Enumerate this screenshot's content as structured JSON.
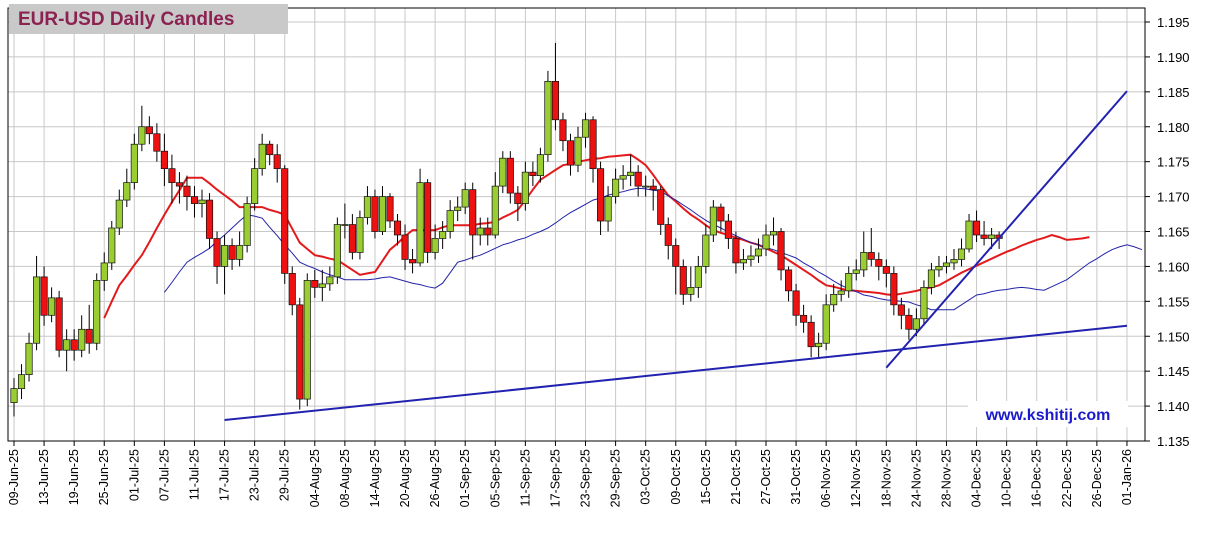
{
  "chart_data": {
    "type": "candlestick",
    "title": "EUR-USD Daily  Candles",
    "annotation": "www.kshitij.com",
    "categories": [
      "09-Jun-25",
      null,
      null,
      null,
      "13-Jun-25",
      null,
      null,
      null,
      "19-Jun-25",
      null,
      null,
      null,
      "25-Jun-25",
      null,
      null,
      null,
      "01-Jul-25",
      null,
      null,
      null,
      "07-Jul-25",
      null,
      null,
      null,
      "11-Jul-25",
      null,
      null,
      null,
      "17-Jul-25",
      null,
      null,
      null,
      "23-Jul-25",
      null,
      null,
      null,
      "29-Jul-25",
      null,
      null,
      null,
      "04-Aug-25",
      null,
      null,
      null,
      "08-Aug-25",
      null,
      null,
      null,
      "14-Aug-25",
      null,
      null,
      null,
      "20-Aug-25",
      null,
      null,
      null,
      "26-Aug-25",
      null,
      null,
      null,
      "01-Sep-25",
      null,
      null,
      null,
      "05-Sep-25",
      null,
      null,
      null,
      "11-Sep-25",
      null,
      null,
      null,
      "17-Sep-25",
      null,
      null,
      null,
      "23-Sep-25",
      null,
      null,
      null,
      "29-Sep-25",
      null,
      null,
      null,
      "03-Oct-25",
      null,
      null,
      null,
      "09-Oct-25",
      null,
      null,
      null,
      "15-Oct-25",
      null,
      null,
      null,
      "21-Oct-25",
      null,
      null,
      null,
      "27-Oct-25",
      null,
      null,
      null,
      "31-Oct-25",
      null,
      null,
      null,
      "06-Nov-25",
      null,
      null,
      null,
      "12-Nov-25",
      null,
      null,
      null,
      "18-Nov-25",
      null,
      null,
      null,
      "24-Nov-25",
      null,
      null,
      null,
      "28-Nov-25",
      null,
      null,
      null,
      "04-Dec-25",
      null,
      null,
      null,
      "10-Dec-25",
      null,
      null,
      null,
      "16-Dec-25",
      null,
      null,
      null,
      "22-Dec-25",
      null,
      null,
      null,
      "26-Dec-25",
      null,
      null,
      null,
      "01-Jan-26",
      null,
      null
    ],
    "open": [
      1.1405,
      1.1425,
      1.1445,
      1.149,
      1.1585,
      1.153,
      1.1555,
      1.148,
      1.1495,
      1.148,
      1.151,
      1.149,
      1.158,
      1.1605,
      1.1655,
      1.1695,
      1.172,
      1.1775,
      1.18,
      1.179,
      1.1765,
      1.174,
      1.172,
      1.1715,
      1.17,
      1.169,
      1.1695,
      1.164,
      1.16,
      1.163,
      1.161,
      1.163,
      1.169,
      1.174,
      1.1775,
      1.176,
      1.174,
      1.159,
      1.1545,
      1.141,
      1.158,
      1.157,
      1.1575,
      1.1585,
      1.166,
      1.166,
      1.162,
      1.167,
      1.17,
      1.165,
      1.17,
      1.1665,
      1.1645,
      1.161,
      1.1605,
      1.172,
      1.162,
      1.164,
      1.165,
      1.168,
      1.1685,
      1.171,
      1.1645,
      1.1655,
      1.1645,
      1.1715,
      1.1755,
      1.1705,
      1.169,
      1.1735,
      1.173,
      1.176,
      1.1865,
      1.181,
      1.178,
      1.1745,
      1.1785,
      1.181,
      1.174,
      1.1665,
      1.17,
      1.1725,
      1.173,
      1.1735,
      1.1715,
      1.1715,
      1.171,
      1.166,
      1.163,
      1.16,
      1.156,
      1.157,
      1.16,
      1.1645,
      1.1685,
      1.1665,
      1.164,
      1.1605,
      1.161,
      1.1615,
      1.1625,
      1.1645,
      1.165,
      1.1595,
      1.1565,
      1.153,
      1.152,
      1.1485,
      1.149,
      1.1545,
      1.156,
      1.1565,
      1.159,
      1.1595,
      1.162,
      1.161,
      1.16,
      1.159,
      1.1545,
      1.153,
      1.151,
      1.1525,
      1.157,
      1.1595,
      1.16,
      1.1605,
      1.161,
      1.1625,
      1.1665,
      1.1645,
      1.164,
      1.1645,
      null,
      null,
      null,
      null,
      null,
      null,
      null,
      null,
      null,
      null,
      null,
      null,
      null,
      null,
      null,
      null,
      null,
      null,
      null
    ],
    "high": [
      1.144,
      1.146,
      1.1505,
      1.1615,
      1.16,
      1.157,
      1.1565,
      1.151,
      1.151,
      1.153,
      1.1545,
      1.159,
      1.162,
      1.1665,
      1.171,
      1.174,
      1.179,
      1.183,
      1.1815,
      1.1805,
      1.179,
      1.176,
      1.1735,
      1.173,
      1.1715,
      1.171,
      1.1705,
      1.165,
      1.1645,
      1.164,
      1.165,
      1.17,
      1.1755,
      1.179,
      1.178,
      1.1775,
      1.1745,
      1.16,
      1.1555,
      1.159,
      1.1595,
      1.1595,
      1.16,
      1.167,
      1.169,
      1.1675,
      1.168,
      1.1715,
      1.171,
      1.1715,
      1.1705,
      1.1675,
      1.166,
      1.1625,
      1.174,
      1.1725,
      1.166,
      1.1665,
      1.1695,
      1.17,
      1.172,
      1.172,
      1.167,
      1.167,
      1.1735,
      1.1765,
      1.1765,
      1.1715,
      1.175,
      1.175,
      1.177,
      1.188,
      1.192,
      1.182,
      1.179,
      1.18,
      1.182,
      1.1815,
      1.175,
      1.1715,
      1.174,
      1.1745,
      1.176,
      1.1745,
      1.173,
      1.1725,
      1.1715,
      1.167,
      1.164,
      1.161,
      1.16,
      1.1615,
      1.166,
      1.1695,
      1.169,
      1.1675,
      1.165,
      1.1625,
      1.163,
      1.164,
      1.166,
      1.167,
      1.1655,
      1.16,
      1.1575,
      1.1545,
      1.153,
      1.1505,
      1.156,
      1.1575,
      1.158,
      1.16,
      1.161,
      1.165,
      1.1655,
      1.162,
      1.161,
      1.16,
      1.1555,
      1.154,
      1.154,
      1.158,
      1.1605,
      1.1615,
      1.1615,
      1.1625,
      1.164,
      1.1675,
      1.168,
      1.1665,
      1.1655,
      1.165,
      null,
      null,
      null,
      null,
      null,
      null,
      null,
      null,
      null,
      null,
      null,
      null,
      null,
      null,
      null,
      null,
      null,
      null,
      null
    ],
    "low": [
      1.1385,
      1.141,
      1.1435,
      1.148,
      1.1515,
      1.152,
      1.147,
      1.145,
      1.1465,
      1.147,
      1.1475,
      1.148,
      1.1565,
      1.1595,
      1.1645,
      1.1685,
      1.171,
      1.1765,
      1.1775,
      1.175,
      1.1715,
      1.169,
      1.169,
      1.168,
      1.167,
      1.167,
      1.1625,
      1.1575,
      1.156,
      1.1595,
      1.16,
      1.162,
      1.168,
      1.173,
      1.1745,
      1.172,
      1.1575,
      1.153,
      1.1395,
      1.14,
      1.1555,
      1.155,
      1.1565,
      1.1575,
      1.164,
      1.161,
      1.161,
      1.166,
      1.164,
      1.1645,
      1.1655,
      1.163,
      1.1595,
      1.159,
      1.16,
      1.1605,
      1.161,
      1.1625,
      1.164,
      1.1665,
      1.1675,
      1.161,
      1.163,
      1.163,
      1.164,
      1.1705,
      1.169,
      1.1665,
      1.168,
      1.1715,
      1.172,
      1.175,
      1.1795,
      1.1765,
      1.173,
      1.1735,
      1.177,
      1.172,
      1.1645,
      1.165,
      1.169,
      1.171,
      1.1715,
      1.17,
      1.17,
      1.168,
      1.1645,
      1.161,
      1.156,
      1.1545,
      1.155,
      1.1555,
      1.159,
      1.1635,
      1.165,
      1.1625,
      1.159,
      1.1595,
      1.16,
      1.1605,
      1.1615,
      1.163,
      1.158,
      1.155,
      1.1515,
      1.1505,
      1.147,
      1.147,
      1.148,
      1.1535,
      1.155,
      1.1555,
      1.158,
      1.1585,
      1.16,
      1.158,
      1.157,
      1.153,
      1.151,
      1.1495,
      1.15,
      1.1515,
      1.156,
      1.1585,
      1.159,
      1.1595,
      1.16,
      1.162,
      1.1635,
      1.163,
      1.1625,
      1.1625,
      null,
      null,
      null,
      null,
      null,
      null,
      null,
      null,
      null,
      null,
      null,
      null,
      null,
      null,
      null,
      null,
      null,
      null,
      null
    ],
    "close": [
      1.1425,
      1.1445,
      1.149,
      1.1585,
      1.153,
      1.1555,
      1.148,
      1.1495,
      1.148,
      1.151,
      1.149,
      1.158,
      1.1605,
      1.1655,
      1.1695,
      1.172,
      1.1775,
      1.18,
      1.179,
      1.1765,
      1.174,
      1.172,
      1.1715,
      1.17,
      1.169,
      1.1695,
      1.164,
      1.16,
      1.163,
      1.161,
      1.163,
      1.169,
      1.174,
      1.1775,
      1.176,
      1.174,
      1.159,
      1.1545,
      1.141,
      1.158,
      1.157,
      1.1575,
      1.1585,
      1.166,
      1.166,
      1.162,
      1.167,
      1.17,
      1.165,
      1.17,
      1.1665,
      1.1645,
      1.161,
      1.1605,
      1.172,
      1.162,
      1.164,
      1.165,
      1.168,
      1.1685,
      1.171,
      1.1645,
      1.1655,
      1.1645,
      1.1715,
      1.1755,
      1.1705,
      1.169,
      1.1735,
      1.173,
      1.176,
      1.1865,
      1.181,
      1.178,
      1.1745,
      1.1785,
      1.181,
      1.174,
      1.1665,
      1.17,
      1.1725,
      1.173,
      1.1735,
      1.1715,
      1.1715,
      1.171,
      1.166,
      1.163,
      1.16,
      1.156,
      1.157,
      1.16,
      1.1645,
      1.1685,
      1.1665,
      1.164,
      1.1605,
      1.161,
      1.1615,
      1.1625,
      1.1645,
      1.165,
      1.1595,
      1.1565,
      1.153,
      1.152,
      1.1485,
      1.149,
      1.1545,
      1.156,
      1.1565,
      1.159,
      1.1595,
      1.162,
      1.161,
      1.16,
      1.159,
      1.1545,
      1.153,
      1.151,
      1.1525,
      1.157,
      1.1595,
      1.16,
      1.1605,
      1.161,
      1.1625,
      1.1665,
      1.1645,
      1.164,
      1.1645,
      1.164,
      null,
      null,
      null,
      null,
      null,
      null,
      null,
      null,
      null,
      null,
      null,
      null,
      null,
      null,
      null,
      null,
      null,
      null,
      null
    ],
    "up_color": "#9acd32",
    "down_color": "#ee1111",
    "lines": [
      {
        "color": "#e31a1c",
        "values": [
          null,
          null,
          null,
          null,
          null,
          null,
          null,
          null,
          null,
          null,
          null,
          null,
          1.1526,
          1.155,
          1.1573,
          1.1587,
          1.1602,
          1.1616,
          1.1635,
          1.1655,
          1.1674,
          1.1692,
          1.1709,
          1.1727,
          1.1727,
          1.1727,
          1.1719,
          1.171,
          1.1702,
          1.1694,
          1.1685,
          1.1685,
          1.1685,
          1.1685,
          1.1681,
          1.1678,
          1.1674,
          1.1654,
          1.1634,
          1.1625,
          1.1616,
          1.1614,
          1.1611,
          1.1609,
          1.1602,
          1.1595,
          1.1588,
          1.159,
          1.1592,
          1.1608,
          1.1624,
          1.1633,
          1.1643,
          1.1652,
          1.1652,
          1.1652,
          1.1652,
          1.1656,
          1.1659,
          1.1659,
          1.1659,
          1.1659,
          1.1661,
          1.1662,
          1.1664,
          1.167,
          1.1675,
          1.1681,
          1.1695,
          1.171,
          1.1724,
          1.1731,
          1.1738,
          1.1745,
          1.1747,
          1.175,
          1.1752,
          1.1754,
          1.1755,
          1.1757,
          1.1758,
          1.1759,
          1.176,
          1.1753,
          1.1745,
          1.1731,
          1.1716,
          1.1702,
          1.1693,
          1.1683,
          1.1674,
          1.1667,
          1.1659,
          1.1652,
          1.1648,
          1.1645,
          1.1641,
          1.1638,
          1.1634,
          1.1631,
          1.1626,
          1.1621,
          1.1616,
          1.1609,
          1.1602,
          1.1595,
          1.1588,
          1.158,
          1.1573,
          1.1571,
          1.1568,
          1.1566,
          1.1565,
          1.1564,
          1.1563,
          1.1562,
          1.156,
          1.1559,
          1.1561,
          1.1563,
          1.1565,
          1.1568,
          1.157,
          1.1573,
          1.1579,
          1.1585,
          1.1591,
          1.1596,
          1.1601,
          1.1606,
          1.1611,
          1.1616,
          1.1621,
          1.1625,
          1.163,
          1.1634,
          1.1638,
          1.1641,
          1.1645,
          1.1642,
          1.1638,
          1.1639,
          1.164,
          1.1642,
          null,
          null,
          null,
          null,
          null,
          null,
          null
        ],
        "width": 2
      },
      {
        "color": "#2323a8",
        "values": [
          null,
          null,
          null,
          null,
          null,
          null,
          null,
          null,
          null,
          null,
          null,
          null,
          null,
          null,
          null,
          null,
          null,
          null,
          null,
          null,
          1.1563,
          1.1577,
          1.1592,
          1.1606,
          1.1613,
          1.1619,
          1.1626,
          1.1636,
          1.1645,
          1.1655,
          1.1665,
          1.1674,
          1.1672,
          1.1669,
          1.1656,
          1.1644,
          1.1631,
          1.1619,
          1.1606,
          1.1601,
          1.1597,
          1.1592,
          1.1588,
          1.1585,
          1.1581,
          1.1581,
          1.1581,
          1.1581,
          1.1582,
          1.1584,
          1.1585,
          1.1582,
          1.1579,
          1.1576,
          1.1574,
          1.1571,
          1.1569,
          1.1576,
          1.1591,
          1.1606,
          1.1609,
          1.1613,
          1.1616,
          1.1621,
          1.1626,
          1.1631,
          1.1634,
          1.1638,
          1.1641,
          1.1646,
          1.165,
          1.1655,
          1.1662,
          1.167,
          1.1677,
          1.1683,
          1.1689,
          1.1695,
          1.1698,
          1.1702,
          1.1705,
          1.1707,
          1.171,
          1.1712,
          1.1711,
          1.1709,
          1.1708,
          1.1701,
          1.1695,
          1.1688,
          1.1681,
          1.1673,
          1.1666,
          1.166,
          1.1655,
          1.1649,
          1.1644,
          1.1639,
          1.1634,
          1.1631,
          1.1627,
          1.1624,
          1.162,
          1.1616,
          1.1612,
          1.1605,
          1.1599,
          1.1592,
          1.1586,
          1.1579,
          1.1573,
          1.1568,
          1.1564,
          1.1559,
          1.1557,
          1.1554,
          1.1552,
          1.1551,
          1.155,
          1.1549,
          1.1545,
          1.1542,
          1.1538,
          1.1538,
          1.1538,
          1.1538,
          1.1545,
          1.1552,
          1.1559,
          1.1561,
          1.1564,
          1.1566,
          1.1567,
          1.1569,
          1.157,
          1.1569,
          1.1567,
          1.1566,
          1.1571,
          1.1576,
          1.1581,
          1.1589,
          1.1597,
          1.1605,
          1.1611,
          1.1618,
          1.1624,
          1.1628,
          1.1631,
          1.1628,
          1.1624
        ],
        "width": 1
      }
    ],
    "trendlines": [
      {
        "color": "#2222b0",
        "x": [
          "17-Jul-25",
          "01-Jan-26"
        ],
        "values": [
          1.138,
          1.1515
        ]
      },
      {
        "color": "#2222b0",
        "x": [
          "18-Nov-25",
          "01-Jan-26"
        ],
        "values": [
          1.1455,
          1.1851
        ]
      }
    ],
    "ylim": [
      1.135,
      1.195
    ],
    "yticks": [
      1.135,
      {
        "value": 1.14,
        "label": "1.140"
      },
      1.145,
      {
        "value": 1.15,
        "label": "1.150"
      },
      1.155,
      {
        "value": 1.16,
        "label": "1.160"
      },
      1.165,
      {
        "value": 1.17,
        "label": "1.170"
      },
      1.175,
      {
        "value": 1.18,
        "label": "1.180"
      },
      1.185,
      {
        "value": 1.19,
        "label": "1.190"
      },
      1.195
    ],
    "grid": true
  }
}
